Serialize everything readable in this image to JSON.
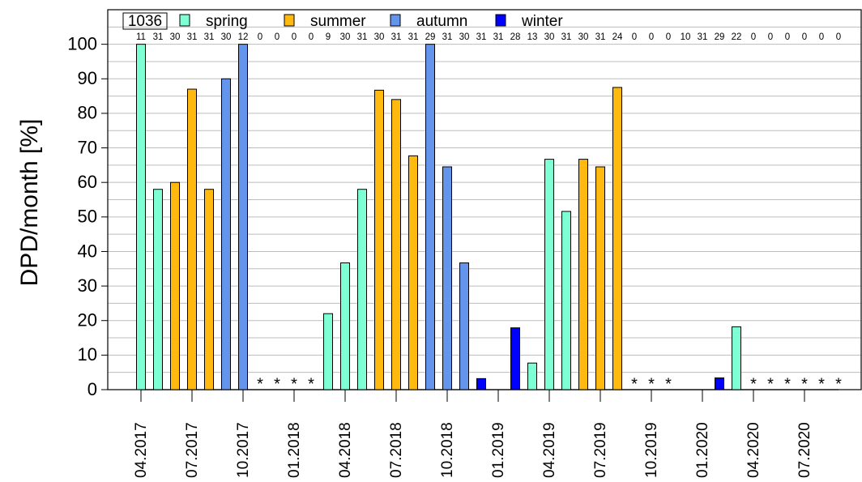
{
  "chart_data": {
    "type": "bar",
    "y_label": "DPD/month [%]",
    "legend_title": "1036",
    "no_data_marker": "*",
    "categories": [
      "04.2017",
      null,
      null,
      "07.2017",
      null,
      null,
      "10.2017",
      null,
      null,
      "01.2018",
      null,
      null,
      "04.2018",
      null,
      null,
      "07.2018",
      null,
      null,
      "10.2018",
      null,
      null,
      "01.2019",
      null,
      null,
      "04.2019",
      null,
      null,
      "07.2019",
      null,
      null,
      "10.2019",
      null,
      null,
      "01.2020",
      null,
      null,
      "04.2020",
      null,
      null,
      "07.2020",
      null,
      null
    ],
    "days": [
      11,
      31,
      30,
      31,
      31,
      30,
      12,
      0,
      0,
      0,
      0,
      9,
      30,
      31,
      30,
      31,
      31,
      29,
      31,
      30,
      31,
      31,
      28,
      13,
      30,
      31,
      30,
      31,
      24,
      0,
      0,
      0,
      10,
      31,
      29,
      22,
      0,
      0,
      0,
      0,
      0,
      0
    ],
    "series": [
      {
        "name": "spring",
        "color": "#7fffd4",
        "values": [
          100,
          58,
          null,
          null,
          null,
          null,
          null,
          null,
          null,
          null,
          null,
          22,
          36.7,
          58,
          null,
          null,
          null,
          null,
          null,
          null,
          null,
          null,
          null,
          7.7,
          66.7,
          51.6,
          null,
          null,
          null,
          null,
          null,
          null,
          null,
          null,
          null,
          18.2,
          0,
          0,
          null,
          null,
          null,
          null
        ]
      },
      {
        "name": "summer",
        "color": "#ffb90f",
        "values": [
          null,
          null,
          60,
          87,
          58,
          null,
          null,
          null,
          null,
          null,
          null,
          null,
          null,
          null,
          86.7,
          84,
          67.7,
          null,
          null,
          null,
          null,
          null,
          null,
          null,
          null,
          null,
          66.7,
          64.5,
          87.5,
          null,
          null,
          null,
          null,
          null,
          null,
          null,
          null,
          null,
          0,
          0,
          0,
          null
        ]
      },
      {
        "name": "autumn",
        "color": "#6495ed",
        "values": [
          null,
          null,
          null,
          null,
          null,
          90,
          100,
          0,
          null,
          null,
          null,
          null,
          null,
          null,
          null,
          null,
          null,
          100,
          64.5,
          36.7,
          null,
          null,
          null,
          null,
          null,
          null,
          null,
          null,
          null,
          0,
          0,
          0,
          null,
          null,
          null,
          null,
          null,
          null,
          null,
          null,
          null,
          0
        ]
      },
      {
        "name": "winter",
        "color": "#0000ff",
        "values": [
          null,
          null,
          null,
          null,
          null,
          null,
          null,
          null,
          0,
          0,
          0,
          null,
          null,
          null,
          null,
          null,
          null,
          null,
          null,
          null,
          3.2,
          0,
          17.9,
          null,
          null,
          null,
          null,
          null,
          null,
          null,
          null,
          null,
          0,
          0,
          3.4,
          null,
          null,
          null,
          null,
          null,
          null,
          null
        ]
      }
    ],
    "ylim": [
      0,
      110
    ],
    "yticks": [
      0,
      10,
      20,
      30,
      40,
      50,
      60,
      70,
      80,
      90,
      100
    ],
    "minor_yticks": [
      5,
      15,
      25,
      35,
      45,
      55,
      65,
      75,
      85,
      95,
      105
    ],
    "grid": true
  }
}
